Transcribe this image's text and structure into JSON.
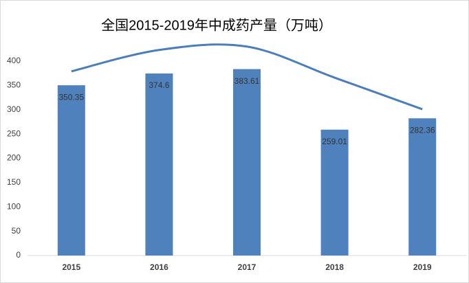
{
  "chart_data": {
    "type": "bar",
    "title": "全国2015-2019年中成药产量（万吨）",
    "categories": [
      "2015",
      "2016",
      "2017",
      "2018",
      "2019"
    ],
    "values": [
      350.35,
      374.6,
      383.61,
      259.01,
      282.36
    ],
    "color": "#4f81bd",
    "curve": {
      "color": "#4a7ebb",
      "values": [
        379,
        423,
        430,
        366,
        301
      ]
    },
    "ylim": [
      0,
      400
    ],
    "yticks": [
      0,
      50,
      100,
      150,
      200,
      250,
      300,
      350,
      400
    ],
    "grid": false
  }
}
